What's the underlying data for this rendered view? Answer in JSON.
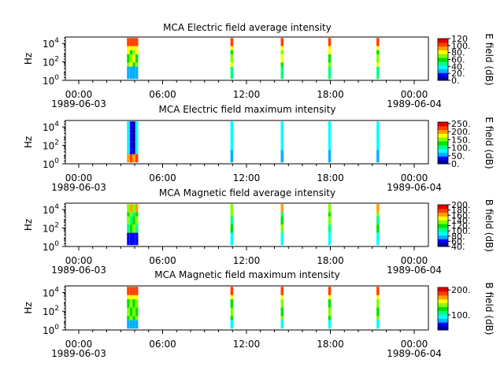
{
  "chart_data": [
    {
      "type": "heatmap",
      "title": "MCA  Electric field average intensity",
      "ylabel": "Hz",
      "y_scale": "log",
      "y_ticks": [
        {
          "base": "10",
          "exp": "0"
        },
        {
          "base": "10",
          "exp": "2"
        },
        {
          "base": "10",
          "exp": "4"
        }
      ],
      "x_ticks": [
        {
          "time": "00:00",
          "date": "1989-06-03"
        },
        {
          "time": "06:00",
          "date": ""
        },
        {
          "time": "12:00",
          "date": ""
        },
        {
          "time": "18:00",
          "date": ""
        },
        {
          "time": "00:00",
          "date": "1989-06-04"
        }
      ],
      "colorbar_label": "E field (dB)",
      "colorbar_range": [
        0,
        120
      ],
      "colorbar_ticks": [
        "0.",
        "20.",
        "40.",
        "60.",
        "80.",
        "100.",
        "120"
      ]
    },
    {
      "type": "heatmap",
      "title": "MCA  Electric field maximum intensity",
      "ylabel": "Hz",
      "y_scale": "log",
      "y_ticks": [
        {
          "base": "10",
          "exp": "0"
        },
        {
          "base": "10",
          "exp": "2"
        },
        {
          "base": "10",
          "exp": "4"
        }
      ],
      "x_ticks": [
        {
          "time": "00:00",
          "date": "1989-06-03"
        },
        {
          "time": "06:00",
          "date": ""
        },
        {
          "time": "12:00",
          "date": ""
        },
        {
          "time": "18:00",
          "date": ""
        },
        {
          "time": "00:00",
          "date": "1989-06-04"
        }
      ],
      "colorbar_label": "E field (dB)",
      "colorbar_range": [
        0,
        260
      ],
      "colorbar_ticks": [
        "0.",
        "50.",
        "100.",
        "150.",
        "200.",
        "250."
      ]
    },
    {
      "type": "heatmap",
      "title": "MCA  Magnetic field average intensity",
      "ylabel": "Hz",
      "y_scale": "log",
      "y_ticks": [
        {
          "base": "10",
          "exp": "0"
        },
        {
          "base": "10",
          "exp": "2"
        },
        {
          "base": "10",
          "exp": "4"
        }
      ],
      "x_ticks": [
        {
          "time": "00:00",
          "date": "1989-06-03"
        },
        {
          "time": "06:00",
          "date": ""
        },
        {
          "time": "12:00",
          "date": ""
        },
        {
          "time": "18:00",
          "date": ""
        },
        {
          "time": "00:00",
          "date": "1989-06-04"
        }
      ],
      "colorbar_label": "B field (dB)",
      "colorbar_range": [
        40,
        200
      ],
      "colorbar_ticks": [
        "40.",
        "60.",
        "80.",
        "100.",
        "120.",
        "140.",
        "160.",
        "180.",
        "200."
      ]
    },
    {
      "type": "heatmap",
      "title": "MCA  Magnetic field maximum intensity",
      "ylabel": "Hz",
      "y_scale": "log",
      "y_ticks": [
        {
          "base": "10",
          "exp": "0"
        },
        {
          "base": "10",
          "exp": "2"
        },
        {
          "base": "10",
          "exp": "4"
        }
      ],
      "x_ticks": [
        {
          "time": "00:00",
          "date": "1989-06-03"
        },
        {
          "time": "06:00",
          "date": ""
        },
        {
          "time": "12:00",
          "date": ""
        },
        {
          "time": "18:00",
          "date": ""
        },
        {
          "time": "00:00",
          "date": "1989-06-04"
        }
      ],
      "colorbar_label": "B field (dB)",
      "colorbar_range": [
        40,
        210
      ],
      "colorbar_ticks": [
        "100.",
        "200."
      ]
    }
  ],
  "colors": {
    "colormap": [
      "#0000a0",
      "#0000ff",
      "#00b0ff",
      "#00ffff",
      "#00ff80",
      "#00e000",
      "#80ff00",
      "#ffff00",
      "#ffa000",
      "#ff4000",
      "#e00000"
    ]
  }
}
